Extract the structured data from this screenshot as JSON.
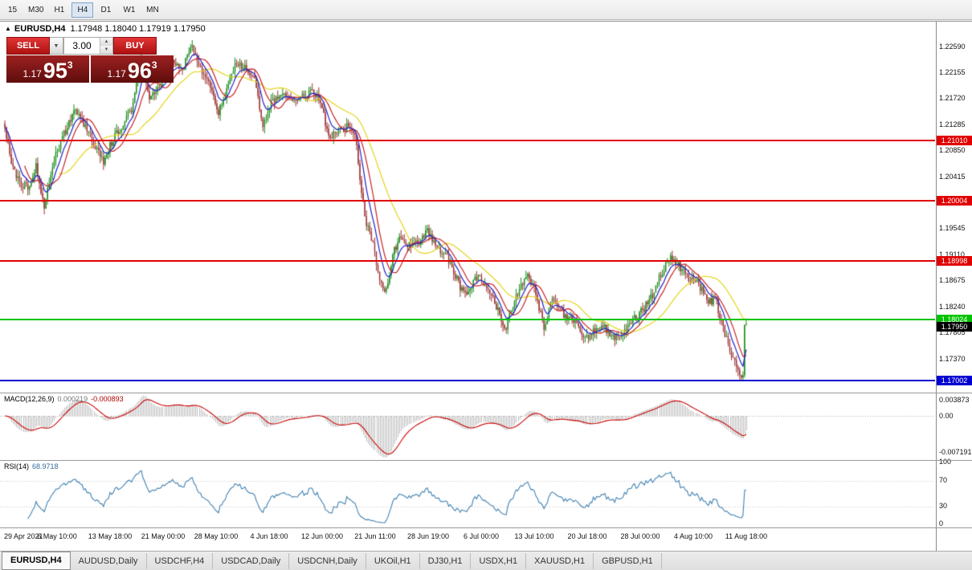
{
  "toolbar": {
    "timeframes": [
      {
        "label": "15",
        "active": false
      },
      {
        "label": "M30",
        "active": false
      },
      {
        "label": "H1",
        "active": false
      },
      {
        "label": "H4",
        "active": true
      },
      {
        "label": "D1",
        "active": false
      },
      {
        "label": "W1",
        "active": false
      },
      {
        "label": "MN",
        "active": false
      }
    ]
  },
  "chart_header": {
    "expand_icon": "▲",
    "symbol": "EURUSD,H4",
    "ohlc": "1.17948 1.18040 1.17919 1.17950"
  },
  "trade_panel": {
    "sell_label": "SELL",
    "buy_label": "BUY",
    "volume": "3.00",
    "sell_price": {
      "prefix": "1.17",
      "big": "95",
      "sup": "3"
    },
    "buy_price": {
      "prefix": "1.17",
      "big": "96",
      "sup": "3"
    }
  },
  "price_axis": {
    "ticks": [
      {
        "label": "1.22590",
        "price": 1.2259
      },
      {
        "label": "1.22155",
        "price": 1.22155
      },
      {
        "label": "1.21720",
        "price": 1.2172
      },
      {
        "label": "1.21285",
        "price": 1.21285
      },
      {
        "label": "1.20850",
        "price": 1.2085
      },
      {
        "label": "1.20415",
        "price": 1.20415
      },
      {
        "label": "1.19545",
        "price": 1.19545
      },
      {
        "label": "1.19110",
        "price": 1.1911
      },
      {
        "label": "1.18675",
        "price": 1.18675
      },
      {
        "label": "1.18240",
        "price": 1.1824
      },
      {
        "label": "1.17805",
        "price": 1.17805
      },
      {
        "label": "1.17370",
        "price": 1.1737
      }
    ]
  },
  "hlines": [
    {
      "label": "1.21010",
      "price": 1.2101,
      "color": "#E00000"
    },
    {
      "label": "1.20004",
      "price": 1.20004,
      "color": "#E00000"
    },
    {
      "label": "1.18998",
      "price": 1.18998,
      "color": "#E00000"
    },
    {
      "label": "1.18024",
      "price": 1.18024,
      "color": "#00C400"
    },
    {
      "label": "1.17002",
      "price": 1.17002,
      "color": "#0000D0"
    }
  ],
  "current_price_tag": {
    "label": "1.17950",
    "price": 1.1795,
    "color": "#000000"
  },
  "macd_panel": {
    "name": "MACD(12,26,9)",
    "value1": "0.000219",
    "value2": "-0.000893",
    "axis_top": "0.003873",
    "axis_zero": "0.00",
    "axis_bottom": "-0.007191"
  },
  "rsi_panel": {
    "name": "RSI(14)",
    "value": "68.9718",
    "levels": [
      "100",
      "70",
      "30",
      "0"
    ]
  },
  "time_axis": [
    "29 Apr 2021",
    "6 May 10:00",
    "13 May 18:00",
    "21 May 00:00",
    "28 May 10:00",
    "4 Jun 18:00",
    "12 Jun 00:00",
    "21 Jun 11:00",
    "28 Jun 19:00",
    "6 Jul 00:00",
    "13 Jul 10:00",
    "20 Jul 18:00",
    "28 Jul 00:00",
    "4 Aug 10:00",
    "11 Aug 18:00"
  ],
  "tabs": [
    {
      "label": "EURUSD,H4",
      "active": true
    },
    {
      "label": "AUDUSD,Daily",
      "active": false
    },
    {
      "label": "USDCHF,H4",
      "active": false
    },
    {
      "label": "USDCAD,Daily",
      "active": false
    },
    {
      "label": "USDCNH,Daily",
      "active": false
    },
    {
      "label": "UKOil,H1",
      "active": false
    },
    {
      "label": "DJ30,H1",
      "active": false
    },
    {
      "label": "USDX,H1",
      "active": false
    },
    {
      "label": "XAUUSD,H1",
      "active": false
    },
    {
      "label": "GBPUSD,H1",
      "active": false
    }
  ],
  "chart_data": {
    "type": "candlestick",
    "symbol": "EURUSD",
    "timeframe": "H4",
    "bars": 452,
    "ylim": [
      1.168,
      1.23
    ],
    "current_bar": {
      "open": 1.17948,
      "high": 1.1804,
      "low": 1.17919,
      "close": 1.1795
    },
    "price_anchors": [
      [
        0,
        1.212
      ],
      [
        4,
        1.2065
      ],
      [
        9,
        1.203
      ],
      [
        14,
        1.2022
      ],
      [
        19,
        1.2058
      ],
      [
        24,
        1.199
      ],
      [
        30,
        1.207
      ],
      [
        36,
        1.2112
      ],
      [
        42,
        1.215
      ],
      [
        48,
        1.2128
      ],
      [
        55,
        1.2092
      ],
      [
        60,
        1.2068
      ],
      [
        66,
        1.2105
      ],
      [
        72,
        1.2128
      ],
      [
        78,
        1.216
      ],
      [
        83,
        1.2238
      ],
      [
        88,
        1.2172
      ],
      [
        96,
        1.22
      ],
      [
        102,
        1.2232
      ],
      [
        108,
        1.2215
      ],
      [
        113,
        1.2262
      ],
      [
        118,
        1.2228
      ],
      [
        124,
        1.2195
      ],
      [
        130,
        1.2148
      ],
      [
        136,
        1.2192
      ],
      [
        140,
        1.223
      ],
      [
        147,
        1.2224
      ],
      [
        152,
        1.2204
      ],
      [
        157,
        1.2124
      ],
      [
        162,
        1.2168
      ],
      [
        170,
        1.2176
      ],
      [
        178,
        1.2168
      ],
      [
        186,
        1.2184
      ],
      [
        192,
        1.2168
      ],
      [
        197,
        1.2108
      ],
      [
        203,
        1.2116
      ],
      [
        209,
        1.2126
      ],
      [
        213,
        1.2118
      ],
      [
        216,
        1.204
      ],
      [
        219,
        1.1975
      ],
      [
        224,
        1.1925
      ],
      [
        229,
        1.1858
      ],
      [
        232,
        1.1852
      ],
      [
        236,
        1.1912
      ],
      [
        241,
        1.1942
      ],
      [
        247,
        1.1922
      ],
      [
        252,
        1.1932
      ],
      [
        257,
        1.1952
      ],
      [
        261,
        1.1928
      ],
      [
        266,
        1.1916
      ],
      [
        271,
        1.1898
      ],
      [
        277,
        1.1856
      ],
      [
        281,
        1.1842
      ],
      [
        287,
        1.1872
      ],
      [
        293,
        1.186
      ],
      [
        299,
        1.1822
      ],
      [
        305,
        1.1788
      ],
      [
        311,
        1.1842
      ],
      [
        317,
        1.1876
      ],
      [
        322,
        1.186
      ],
      [
        328,
        1.1786
      ],
      [
        333,
        1.184
      ],
      [
        340,
        1.181
      ],
      [
        347,
        1.1798
      ],
      [
        352,
        1.1766
      ],
      [
        358,
        1.1784
      ],
      [
        364,
        1.1796
      ],
      [
        369,
        1.177
      ],
      [
        376,
        1.1776
      ],
      [
        382,
        1.1802
      ],
      [
        388,
        1.1818
      ],
      [
        394,
        1.1844
      ],
      [
        400,
        1.1884
      ],
      [
        406,
        1.1906
      ],
      [
        411,
        1.189
      ],
      [
        416,
        1.187
      ],
      [
        421,
        1.1866
      ],
      [
        427,
        1.1836
      ],
      [
        433,
        1.183
      ],
      [
        437,
        1.1786
      ],
      [
        441,
        1.175
      ],
      [
        445,
        1.1728
      ],
      [
        448,
        1.1706
      ],
      [
        449,
        1.1712
      ],
      [
        450,
        1.1792
      ],
      [
        451,
        1.1795
      ]
    ],
    "moving_averages": [
      {
        "type": "ema",
        "period": 8,
        "color": "#2020C8"
      },
      {
        "type": "sma",
        "period": 13,
        "color": "#C82020"
      },
      {
        "type": "sma",
        "period": 34,
        "color": "#E3D41C"
      }
    ],
    "macd": {
      "fast": 12,
      "slow": 26,
      "signal": 9
    },
    "rsi_period": 14,
    "colors": {
      "up": "#1A8C1A",
      "down": "#9E3232",
      "macd_hist": "#BDBDBD",
      "macd_signal": "#C80000",
      "rsi": "#4080B0"
    }
  }
}
